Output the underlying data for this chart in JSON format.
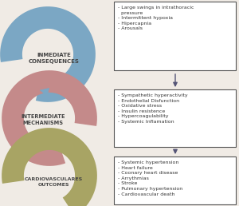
{
  "bg_color": "#f0ebe5",
  "arrow_colors": {
    "blue": "#7ba7c4",
    "pink": "#c48a8a",
    "olive": "#a8a464"
  },
  "labels": {
    "top": "INMEDIATE\nCONSEQUENCES",
    "mid": "INTERMEDIATE\nMECHANISMS",
    "bot": "CARDIOVASCULARES\nOUTCOMES"
  },
  "box1_text": "- Large swings in intrathoracic\n  pressure\n- Intermittent hypoxia\n- Hipercapnia\n- Arousals",
  "box2_text": "- Sympathetic hyperactivity\n- Endothelial Disfunction\n- Oxidative stress\n- Insulin resistence\n- Hypercoagulability\n- Systemic Inflamation",
  "box3_text": "- Systemic hypertension\n- Heart failure\n- Coonary heart disease\n- Arrythmias\n- Stroke\n- Pulmonary hypertension\n- Cardiovascular death",
  "text_color": "#333333",
  "label_color": "#555533"
}
